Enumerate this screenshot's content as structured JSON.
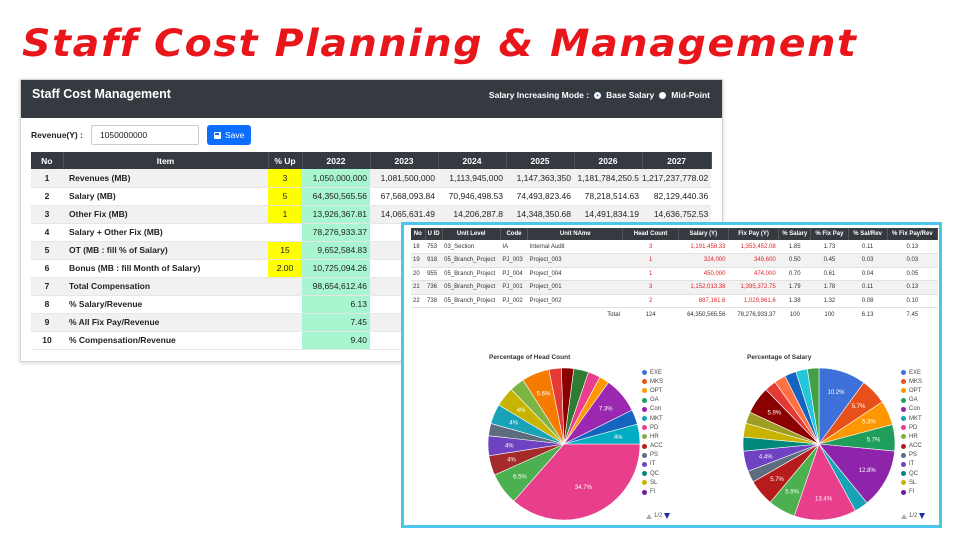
{
  "headline": "Staff Cost Planning & Management",
  "panel": {
    "title": "Staff Cost Management",
    "mode_label": "Salary Increasing Mode :",
    "mode_options": [
      "Base Salary",
      "Mid-Point"
    ],
    "mode_selected": "Base Salary",
    "revenue_label": "Revenue(Y) :",
    "revenue_value": "1050000000",
    "save_label": "Save",
    "columns": [
      "No",
      "Item",
      "% Up",
      "2022",
      "2023",
      "2024",
      "2025",
      "2026",
      "2027"
    ],
    "rows": [
      {
        "no": "1",
        "item": "Revenues (MB)",
        "up": "3",
        "v2022": "1,050,000,000",
        "v2023": "1,081,500,000",
        "v2024": "1,113,945,000",
        "v2025": "1,147,363,350",
        "v2026": "1,181,784,250.5",
        "v2027": "1,217,237,778.02"
      },
      {
        "no": "2",
        "item": "Salary (MB)",
        "up": "5",
        "v2022": "64,350,565.56",
        "v2023": "67,568,093.84",
        "v2024": "70,946,498.53",
        "v2025": "74,493,823.46",
        "v2026": "78,218,514.63",
        "v2027": "82,129,440.36"
      },
      {
        "no": "3",
        "item": "Other Fix (MB)",
        "up": "1",
        "v2022": "13,926,367.81",
        "v2023": "14,065,631.49",
        "v2024": "14,206,287.8",
        "v2025": "14,348,350.68",
        "v2026": "14,491,834.19",
        "v2027": "14,636,752.53"
      },
      {
        "no": "4",
        "item": "Salary + Other Fix (MB)",
        "up": "",
        "v2022": "78,276,933.37",
        "v2023": "81,6",
        "v2024": "",
        "v2025": "",
        "v2026": "",
        "v2027": ""
      },
      {
        "no": "5",
        "item": "OT (MB : fill % of Salary)",
        "up": "15",
        "v2022": "9,652,584.83",
        "v2023": "10,1",
        "v2024": "",
        "v2025": "",
        "v2026": "",
        "v2027": ""
      },
      {
        "no": "6",
        "item": "Bonus (MB : fill Month of Salary)",
        "up": "2.00",
        "v2022": "10,725,094.26",
        "v2023": "11,2",
        "v2024": "",
        "v2025": "",
        "v2026": "",
        "v2027": ""
      },
      {
        "no": "7",
        "item": "Total Compensation",
        "up": "",
        "v2022": "98,654,612.46",
        "v2023": "103,0",
        "v2024": "",
        "v2025": "",
        "v2026": "",
        "v2027": ""
      },
      {
        "no": "8",
        "item": "% Salary/Revenue",
        "up": "",
        "v2022": "6.13",
        "v2023": "",
        "v2024": "",
        "v2025": "",
        "v2026": "",
        "v2027": ""
      },
      {
        "no": "9",
        "item": "% All Fix Pay/Revenue",
        "up": "",
        "v2022": "7.45",
        "v2023": "",
        "v2024": "",
        "v2025": "",
        "v2026": "",
        "v2027": ""
      },
      {
        "no": "10",
        "item": "% Compensation/Revenue",
        "up": "",
        "v2022": "9.40",
        "v2023": "",
        "v2024": "",
        "v2025": "",
        "v2026": "",
        "v2027": ""
      }
    ]
  },
  "detail": {
    "columns": [
      "No",
      "U ID",
      "Unit Level",
      "Code",
      "Unit NAme",
      "Head Count",
      "Salary (Y)",
      "Fix Pay (Y)",
      "% Salary",
      "% Fix Pay",
      "% Sal/Rev",
      "% Fix Pay/Rev"
    ],
    "rows": [
      {
        "no": "18",
        "uid": "753",
        "level": "03_Section",
        "code": "IA",
        "name": "Internal Audit",
        "hc": "3",
        "salary": "1,191,458.33",
        "fixpay": "1,353,452.08",
        "psal": "1.85",
        "pfix": "1.73",
        "psalrev": "0.11",
        "pfixrev": "0.13"
      },
      {
        "no": "19",
        "uid": "918",
        "level": "05_Branch_Project",
        "code": "PJ_003",
        "name": "Project_003",
        "hc": "1",
        "salary": "324,000",
        "fixpay": "349,600",
        "psal": "0.50",
        "pfix": "0.45",
        "psalrev": "0.03",
        "pfixrev": "0.03"
      },
      {
        "no": "20",
        "uid": "955",
        "level": "05_Branch_Project",
        "code": "PJ_004",
        "name": "Project_004",
        "hc": "1",
        "salary": "450,000",
        "fixpay": "474,000",
        "psal": "0.70",
        "pfix": "0.61",
        "psalrev": "0.04",
        "pfixrev": "0.05"
      },
      {
        "no": "21",
        "uid": "736",
        "level": "05_Branch_Project",
        "code": "PJ_001",
        "name": "Project_001",
        "hc": "3",
        "salary": "1,152,013.38",
        "fixpay": "1,395,372.75",
        "psal": "1.79",
        "pfix": "1.78",
        "psalrev": "0.11",
        "pfixrev": "0.13"
      },
      {
        "no": "22",
        "uid": "738",
        "level": "05_Branch_Project",
        "code": "PJ_002",
        "name": "Project_002",
        "hc": "2",
        "salary": "887,161.6",
        "fixpay": "1,029,961.6",
        "psal": "1.38",
        "pfix": "1.32",
        "psalrev": "0.08",
        "pfixrev": "0.10"
      }
    ],
    "total": {
      "label": "Total",
      "hc": "124",
      "salary": "64,350,565.56",
      "fixpay": "78,276,933.37",
      "psal": "100",
      "pfix": "100",
      "psalrev": "6.13",
      "pfixrev": "7.45"
    }
  },
  "legend_labels": [
    "EXE",
    "MKS",
    "OPT",
    "GA",
    "Con",
    "MKT",
    "PD",
    "HR",
    "ACC",
    "PS",
    "IT",
    "QC",
    "SL",
    "FI"
  ],
  "pager_text": "1/2",
  "chart_data": [
    {
      "type": "pie",
      "title": "Percentage of Head Count",
      "slices": [
        {
          "label": "",
          "value": 34.7,
          "color": "#e83e8c",
          "text": "34.7%"
        },
        {
          "label": "",
          "value": 6.5,
          "color": "#4caf50",
          "text": "6.5%"
        },
        {
          "label": "",
          "value": 4.0,
          "color": "#a52a2a",
          "text": "4%"
        },
        {
          "label": "",
          "value": 4.0,
          "color": "#6f42c1",
          "text": "4%"
        },
        {
          "label": "",
          "value": 2.5,
          "color": "#5d6d7e",
          "text": ""
        },
        {
          "label": "",
          "value": 4.0,
          "color": "#17a2b8",
          "text": "4%"
        },
        {
          "label": "",
          "value": 4.0,
          "color": "#c8b400",
          "text": "4%"
        },
        {
          "label": "",
          "value": 3.0,
          "color": "#7cb342",
          "text": ""
        },
        {
          "label": "",
          "value": 5.6,
          "color": "#f57c00",
          "text": "5.6%"
        },
        {
          "label": "",
          "value": 2.5,
          "color": "#e53935",
          "text": ""
        },
        {
          "label": "",
          "value": 2.5,
          "color": "#8b0000",
          "text": ""
        },
        {
          "label": "",
          "value": 3.0,
          "color": "#2e7d32",
          "text": ""
        },
        {
          "label": "",
          "value": 2.5,
          "color": "#e83e8c",
          "text": ""
        },
        {
          "label": "",
          "value": 2.0,
          "color": "#ff9800",
          "text": ""
        },
        {
          "label": "",
          "value": 7.3,
          "color": "#9c27b0",
          "text": "7.3%"
        },
        {
          "label": "",
          "value": 3.0,
          "color": "#1565c0",
          "text": ""
        },
        {
          "label": "",
          "value": 4.0,
          "color": "#00acc1",
          "text": "4%"
        }
      ]
    },
    {
      "type": "pie",
      "title": "Percentage of Salary",
      "slices": [
        {
          "label": "",
          "value": 10.2,
          "color": "#3f6fd8",
          "text": "10.2%"
        },
        {
          "label": "",
          "value": 5.7,
          "color": "#e8501a",
          "text": "5.7%"
        },
        {
          "label": "",
          "value": 5.3,
          "color": "#ff9800",
          "text": "5.3%"
        },
        {
          "label": "",
          "value": 5.7,
          "color": "#1e9e5a",
          "text": "5.7%"
        },
        {
          "label": "",
          "value": 12.8,
          "color": "#8e24aa",
          "text": "12.8%"
        },
        {
          "label": "",
          "value": 3.0,
          "color": "#17a2b8",
          "text": ""
        },
        {
          "label": "",
          "value": 13.4,
          "color": "#e83e8c",
          "text": "13.4%"
        },
        {
          "label": "",
          "value": 5.9,
          "color": "#4caf50",
          "text": "5.9%"
        },
        {
          "label": "",
          "value": 5.7,
          "color": "#b71c1c",
          "text": "5.7%"
        },
        {
          "label": "",
          "value": 2.5,
          "color": "#5d6d7e",
          "text": ""
        },
        {
          "label": "",
          "value": 4.4,
          "color": "#6f42c1",
          "text": "4.4%"
        },
        {
          "label": "",
          "value": 3.0,
          "color": "#00897b",
          "text": ""
        },
        {
          "label": "",
          "value": 3.0,
          "color": "#c8b400",
          "text": ""
        },
        {
          "label": "",
          "value": 2.5,
          "color": "#9e9d24",
          "text": ""
        },
        {
          "label": "",
          "value": 5.9,
          "color": "#8b0000",
          "text": "5.9%"
        },
        {
          "label": "",
          "value": 2.5,
          "color": "#e53935",
          "text": ""
        },
        {
          "label": "",
          "value": 2.5,
          "color": "#ff7043",
          "text": ""
        },
        {
          "label": "",
          "value": 2.5,
          "color": "#1565c0",
          "text": ""
        },
        {
          "label": "",
          "value": 2.5,
          "color": "#26c6da",
          "text": ""
        },
        {
          "label": "",
          "value": 2.5,
          "color": "#43a047",
          "text": ""
        }
      ]
    }
  ],
  "legend_colors": [
    "#3f6fd8",
    "#e8501a",
    "#ff9800",
    "#1e9e5a",
    "#8e24aa",
    "#17a2b8",
    "#e83e8c",
    "#7cb342",
    "#b71c1c",
    "#5d6d7e",
    "#6f42c1",
    "#00897b",
    "#c8b400",
    "#6a1b9a"
  ]
}
